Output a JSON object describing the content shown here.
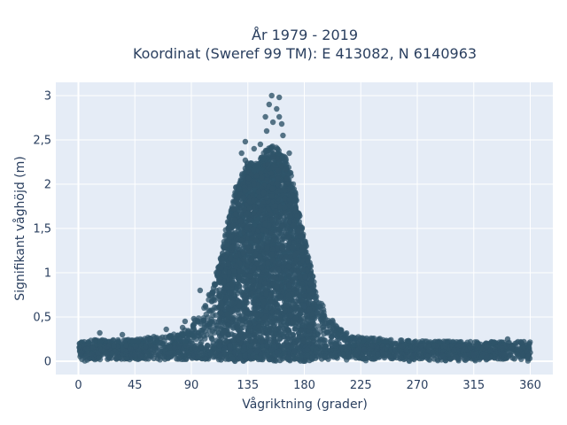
{
  "chart_data": {
    "type": "scatter",
    "title_line1": "År 1979 - 2019",
    "title_line2": "Koordinat (Sweref 99 TM): E 413082, N 6140963",
    "xlabel": "Vågriktning (grader)",
    "ylabel": "Signifikant våghöjd (m)",
    "xlim": [
      -18,
      378
    ],
    "ylim": [
      -0.15,
      3.15
    ],
    "xticks": [
      0,
      45,
      90,
      135,
      180,
      225,
      270,
      315,
      360
    ],
    "xtick_labels": [
      "0",
      "45",
      "90",
      "135",
      "180",
      "225",
      "270",
      "315",
      "360"
    ],
    "yticks": [
      0,
      0.5,
      1,
      1.5,
      2,
      2.5,
      3
    ],
    "ytick_labels": [
      "0",
      "0,5",
      "1",
      "1,5",
      "2",
      "2,5",
      "3"
    ],
    "grid": true,
    "marker_color": "#2f5469",
    "plot_background": "#e5ecf6",
    "envelope": [
      [
        0,
        0.22
      ],
      [
        15,
        0.25
      ],
      [
        30,
        0.24
      ],
      [
        45,
        0.25
      ],
      [
        60,
        0.28
      ],
      [
        75,
        0.3
      ],
      [
        90,
        0.38
      ],
      [
        100,
        0.6
      ],
      [
        108,
        0.85
      ],
      [
        115,
        1.3
      ],
      [
        120,
        1.7
      ],
      [
        125,
        1.95
      ],
      [
        130,
        2.1
      ],
      [
        135,
        2.3
      ],
      [
        140,
        2.2
      ],
      [
        145,
        2.3
      ],
      [
        150,
        2.4
      ],
      [
        155,
        2.45
      ],
      [
        160,
        2.4
      ],
      [
        165,
        2.3
      ],
      [
        170,
        2.1
      ],
      [
        175,
        1.75
      ],
      [
        180,
        1.4
      ],
      [
        185,
        1.1
      ],
      [
        190,
        0.75
      ],
      [
        200,
        0.5
      ],
      [
        210,
        0.35
      ],
      [
        225,
        0.27
      ],
      [
        270,
        0.23
      ],
      [
        315,
        0.22
      ],
      [
        360,
        0.22
      ]
    ],
    "outliers": [
      [
        154,
        3.0
      ],
      [
        160,
        2.98
      ],
      [
        152,
        2.9
      ],
      [
        158,
        2.85
      ],
      [
        149,
        2.76
      ],
      [
        160,
        2.76
      ],
      [
        155,
        2.7
      ],
      [
        162,
        2.68
      ],
      [
        150,
        2.6
      ],
      [
        163,
        2.55
      ],
      [
        133,
        2.48
      ],
      [
        145,
        2.45
      ],
      [
        130,
        2.35
      ],
      [
        168,
        2.35
      ],
      [
        133,
        2.27
      ],
      [
        140,
        2.4
      ],
      [
        110,
        1.0
      ],
      [
        97,
        0.8
      ],
      [
        104,
        0.75
      ],
      [
        92,
        0.48
      ],
      [
        93,
        0.46
      ],
      [
        83,
        0.38
      ],
      [
        85,
        0.45
      ],
      [
        17,
        0.32
      ],
      [
        35,
        0.3
      ],
      [
        70,
        0.36
      ],
      [
        180,
        0.62
      ],
      [
        190,
        0.55
      ],
      [
        342,
        0.25
      ],
      [
        355,
        0.22
      ]
    ]
  }
}
